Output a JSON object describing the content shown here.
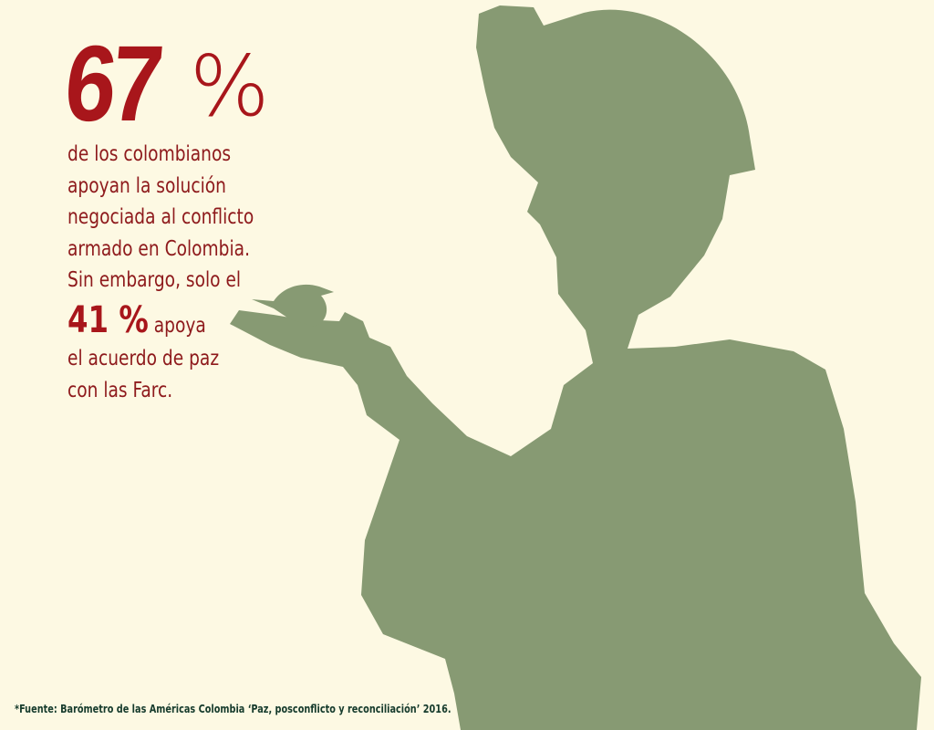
{
  "headline": {
    "value": "67",
    "unit": "%"
  },
  "lines": [
    "de los colombianos",
    "apoyan la solución",
    "negociada al conflicto",
    "armado en Colombia.",
    "Sin embargo, solo el"
  ],
  "highlight": {
    "value": "41 %",
    "rest": " apoya"
  },
  "lines_after": [
    "el acuerdo de paz",
    "con las Farc."
  ],
  "footer": "*Fuente: Barómetro de las Américas Colombia ‘Paz, posconflicto y reconciliación’ 2016.",
  "colors": {
    "background": "#fdf9e3",
    "accent": "#a8161b",
    "text": "#8e1a1c",
    "silhouette": "#879a73",
    "footer": "#163b2c"
  },
  "illustration": "soldier-silhouette-holding-bird"
}
